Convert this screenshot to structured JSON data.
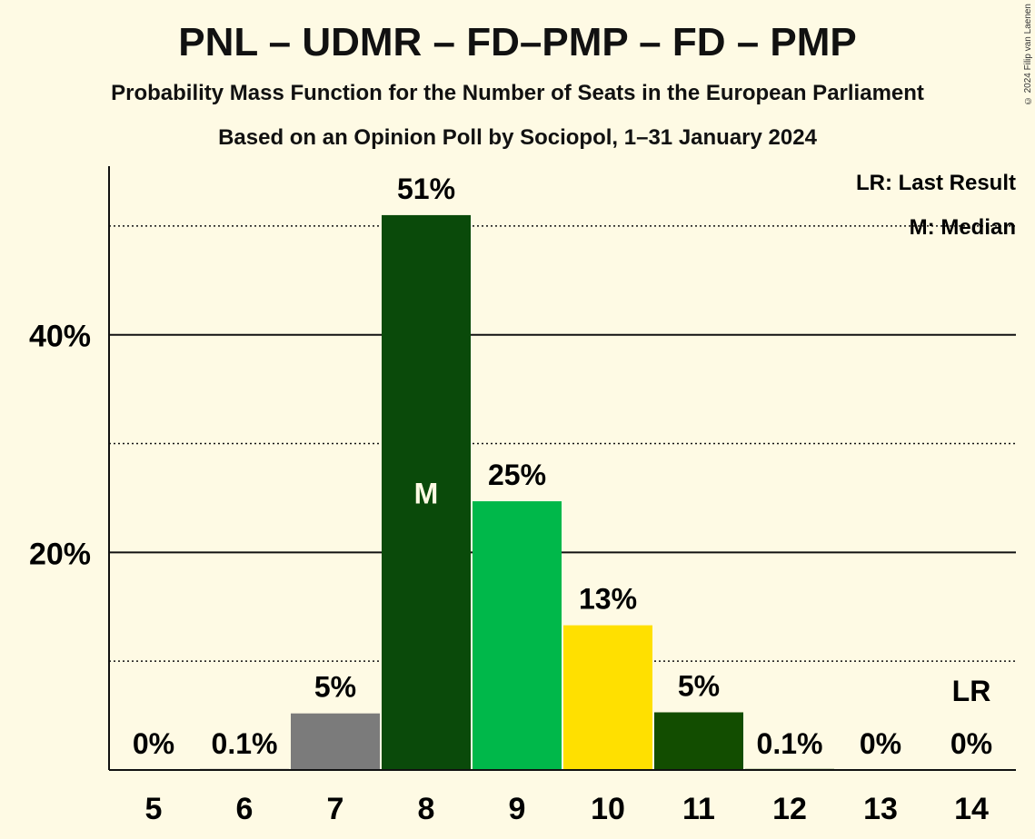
{
  "header": {
    "title": "PNL – UDMR – FD–PMP – FD – PMP",
    "subtitle": "Probability Mass Function for the Number of Seats in the European Parliament",
    "subtitle2": "Based on an Opinion Poll by Sociopol, 1–31 January 2024",
    "copyright": "© 2024 Filip van Laenen"
  },
  "legend": {
    "last_result": "LR: Last Result",
    "median": "M: Median"
  },
  "chart_data": {
    "type": "bar",
    "categories": [
      "5",
      "6",
      "7",
      "8",
      "9",
      "10",
      "11",
      "12",
      "13",
      "14"
    ],
    "values": [
      0,
      0.1,
      5.2,
      51,
      24.7,
      13.3,
      5.3,
      0.1,
      0,
      0
    ],
    "value_labels": [
      "0%",
      "0.1%",
      "5%",
      "51%",
      "25%",
      "13%",
      "5%",
      "0.1%",
      "0%",
      "0%"
    ],
    "bar_colors": [
      "#7b7b7b",
      "#7b7b7b",
      "#7b7b7b",
      "#0a4a0a",
      "#00b84a",
      "#ffe000",
      "#124d00",
      "#124d00",
      "#124d00",
      "#124d00"
    ],
    "ylim": [
      0,
      55.5
    ],
    "y_ticks": [
      {
        "value": 20,
        "label": "20%"
      },
      {
        "value": 40,
        "label": "40%"
      }
    ],
    "minor_gridlines": [
      10,
      30,
      50
    ],
    "median_index": 3,
    "median_label": "M",
    "last_result_index": 9,
    "last_result_label": "LR",
    "legend_position": "top-right",
    "xlabel": "",
    "ylabel": ""
  }
}
